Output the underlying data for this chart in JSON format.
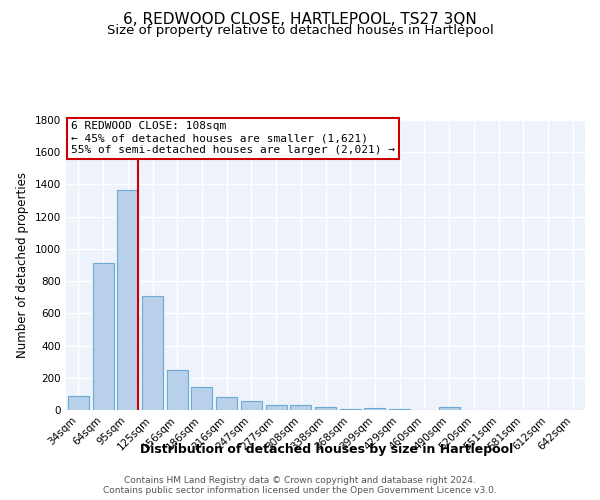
{
  "title": "6, REDWOOD CLOSE, HARTLEPOOL, TS27 3QN",
  "subtitle": "Size of property relative to detached houses in Hartlepool",
  "xlabel": "Distribution of detached houses by size in Hartlepool",
  "ylabel": "Number of detached properties",
  "footer_line1": "Contains HM Land Registry data © Crown copyright and database right 2024.",
  "footer_line2": "Contains public sector information licensed under the Open Government Licence v3.0.",
  "categories": [
    "34sqm",
    "64sqm",
    "95sqm",
    "125sqm",
    "156sqm",
    "186sqm",
    "216sqm",
    "247sqm",
    "277sqm",
    "308sqm",
    "338sqm",
    "368sqm",
    "399sqm",
    "429sqm",
    "460sqm",
    "490sqm",
    "520sqm",
    "551sqm",
    "581sqm",
    "612sqm",
    "642sqm"
  ],
  "values": [
    88,
    910,
    1365,
    710,
    248,
    145,
    80,
    55,
    28,
    30,
    18,
    8,
    10,
    5,
    0,
    18,
    0,
    0,
    0,
    0,
    0
  ],
  "bar_color": "#b8d0ea",
  "bar_edge_color": "#6aaad4",
  "background_color": "#eef2fb",
  "grid_color": "#ffffff",
  "vline_color": "#cc0000",
  "annotation_text": "6 REDWOOD CLOSE: 108sqm\n← 45% of detached houses are smaller (1,621)\n55% of semi-detached houses are larger (2,021) →",
  "annotation_box_color": "#ffffff",
  "annotation_box_edge": "#cc0000",
  "ylim": [
    0,
    1800
  ],
  "yticks": [
    0,
    200,
    400,
    600,
    800,
    1000,
    1200,
    1400,
    1600,
    1800
  ],
  "title_fontsize": 11,
  "subtitle_fontsize": 9.5,
  "xlabel_fontsize": 9,
  "ylabel_fontsize": 8.5,
  "footer_fontsize": 6.5,
  "tick_fontsize": 7.5,
  "annot_fontsize": 8
}
